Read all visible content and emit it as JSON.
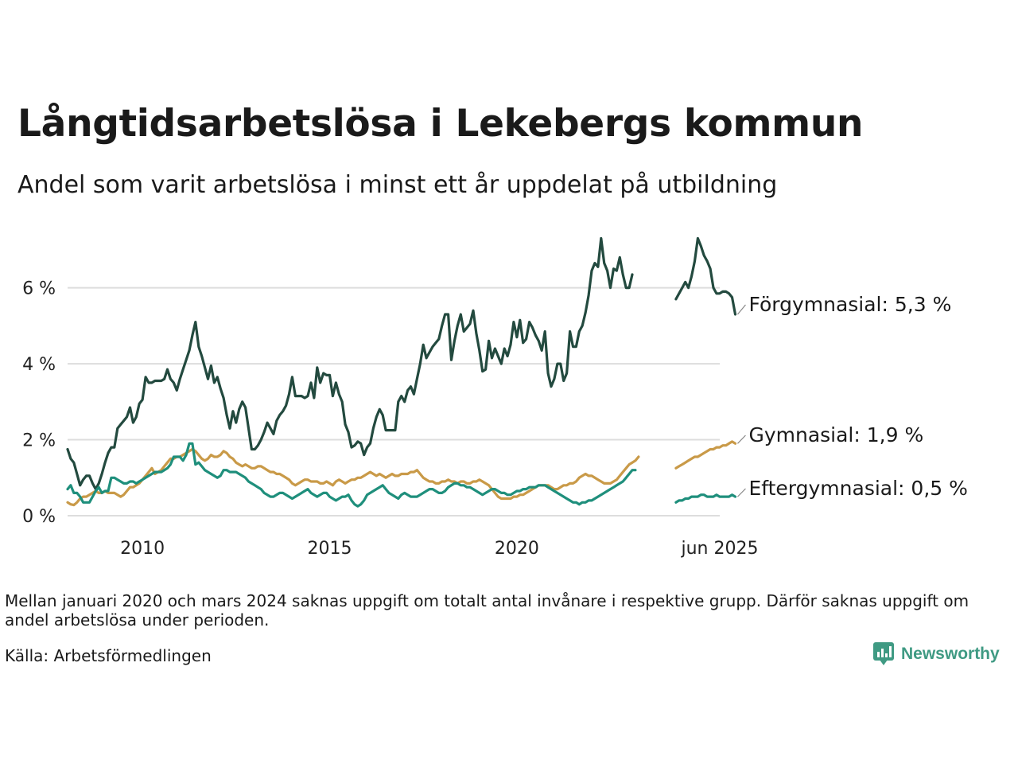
{
  "header": {
    "title": "Långtidsarbetslösa i Lekebergs kommun",
    "subtitle": "Andel som varit arbetslösa i minst ett år uppdelat på utbildning"
  },
  "footer": {
    "note": "Mellan januari 2020 och mars 2024 saknas uppgift om totalt antal invånare i respektive grupp. Därför saknas uppgift om andel arbetslösa under perioden.",
    "source": "Källa: Arbetsförmedlingen",
    "brand": "Newsworthy",
    "brand_icon": "newsworthy-logo-icon"
  },
  "chart_data": {
    "type": "line",
    "title": "Långtidsarbetslösa i Lekebergs kommun",
    "subtitle": "Andel som varit arbetslösa i minst ett år uppdelat på utbildning",
    "xlabel": "",
    "ylabel": "",
    "ylim": [
      0,
      7.5
    ],
    "y_ticks": [
      0,
      2,
      4,
      6
    ],
    "y_tick_labels": [
      "0 %",
      "2 %",
      "4 %",
      "6 %"
    ],
    "x_ticks": [
      2010,
      2015,
      2020,
      2025.42
    ],
    "x_tick_labels": [
      "2010",
      "2015",
      "2020",
      "jun 2025"
    ],
    "grid": true,
    "legend": "end-labels",
    "series": [
      {
        "name": "Förgymnasial",
        "end_label": "Förgymnasial: 5,3 %",
        "color": "#234a3f",
        "segments": [
          {
            "start": "2008-01",
            "values": [
              1.75,
              1.5,
              1.4,
              1.1,
              0.8,
              0.95,
              1.05,
              1.05,
              0.85,
              0.7,
              0.85,
              1.1,
              1.4,
              1.65,
              1.8,
              1.8,
              2.3,
              2.4,
              2.5,
              2.6,
              2.85,
              2.45,
              2.6,
              2.95,
              3.05,
              3.65,
              3.5,
              3.5,
              3.55,
              3.55,
              3.55,
              3.6,
              3.85,
              3.6,
              3.5,
              3.3,
              3.6,
              3.85,
              4.1,
              4.35,
              4.75,
              5.1,
              4.45,
              4.2,
              3.9,
              3.6,
              3.95,
              3.5,
              3.65,
              3.35,
              3.1,
              2.65,
              2.3,
              2.75,
              2.45,
              2.8,
              3.0,
              2.85,
              2.3,
              1.75,
              1.75,
              1.85,
              2.0,
              2.2,
              2.45,
              2.3,
              2.15,
              2.5,
              2.65,
              2.75,
              2.9,
              3.2,
              3.65,
              3.15,
              3.15,
              3.15,
              3.1,
              3.15,
              3.5,
              3.1,
              3.9,
              3.5,
              3.75,
              3.7,
              3.7,
              3.15,
              3.5,
              3.2,
              3.0,
              2.4,
              2.2,
              1.8,
              1.85,
              1.95,
              1.9,
              1.6,
              1.8,
              1.9,
              2.3,
              2.6,
              2.8,
              2.65,
              2.25,
              2.25,
              2.25,
              2.25,
              3.0,
              3.15,
              3.0,
              3.3,
              3.4,
              3.2,
              3.6,
              4.0,
              4.5,
              4.15,
              4.3,
              4.45,
              4.55,
              4.65,
              5.0,
              5.3,
              5.3,
              4.1,
              4.6,
              5.0,
              5.3,
              4.85,
              4.95,
              5.05,
              5.4,
              4.8,
              4.35,
              3.8,
              3.85,
              4.6,
              4.15,
              4.4,
              4.2,
              4.0,
              4.4,
              4.2,
              4.5,
              5.1,
              4.7,
              5.15,
              4.55,
              4.65,
              5.1,
              4.95,
              4.75,
              4.6,
              4.35,
              4.85,
              3.75,
              3.4,
              3.6,
              4.0,
              4.0,
              3.55,
              3.75,
              4.85,
              4.45,
              4.45,
              4.85,
              5.0,
              5.35,
              5.8,
              6.45,
              6.65,
              6.55,
              7.3,
              6.65,
              6.45,
              6.0,
              6.5,
              6.45,
              6.8,
              6.35,
              6.0,
              6.0,
              6.35
            ]
          },
          {
            "start": "2024-04",
            "values": [
              5.7,
              5.85,
              6.0,
              6.15,
              6.0,
              6.3,
              6.7,
              7.3,
              7.1,
              6.85,
              6.7,
              6.5,
              6.0,
              5.85,
              5.85,
              5.9,
              5.9,
              5.85,
              5.75,
              5.3
            ]
          }
        ]
      },
      {
        "name": "Gymnasial",
        "end_label": "Gymnasial: 1,9 %",
        "color": "#c99a48",
        "segments": [
          {
            "start": "2008-01",
            "values": [
              0.35,
              0.3,
              0.28,
              0.35,
              0.45,
              0.5,
              0.5,
              0.55,
              0.6,
              0.65,
              0.6,
              0.6,
              0.65,
              0.6,
              0.6,
              0.6,
              0.55,
              0.5,
              0.55,
              0.65,
              0.75,
              0.75,
              0.8,
              0.85,
              0.95,
              1.05,
              1.15,
              1.25,
              1.1,
              1.15,
              1.2,
              1.3,
              1.4,
              1.5,
              1.5,
              1.55,
              1.55,
              1.6,
              1.65,
              1.7,
              1.75,
              1.7,
              1.6,
              1.5,
              1.45,
              1.5,
              1.6,
              1.55,
              1.55,
              1.6,
              1.7,
              1.65,
              1.55,
              1.5,
              1.4,
              1.35,
              1.3,
              1.35,
              1.3,
              1.25,
              1.25,
              1.3,
              1.3,
              1.25,
              1.2,
              1.15,
              1.15,
              1.1,
              1.1,
              1.05,
              1.0,
              0.95,
              0.85,
              0.8,
              0.85,
              0.9,
              0.95,
              0.95,
              0.9,
              0.9,
              0.9,
              0.85,
              0.85,
              0.9,
              0.85,
              0.8,
              0.9,
              0.95,
              0.9,
              0.85,
              0.9,
              0.95,
              0.95,
              1.0,
              1.0,
              1.05,
              1.1,
              1.15,
              1.1,
              1.05,
              1.1,
              1.05,
              1.0,
              1.05,
              1.1,
              1.05,
              1.05,
              1.1,
              1.1,
              1.1,
              1.15,
              1.15,
              1.2,
              1.1,
              1.0,
              0.95,
              0.9,
              0.9,
              0.85,
              0.85,
              0.9,
              0.9,
              0.95,
              0.9,
              0.9,
              0.85,
              0.9,
              0.9,
              0.85,
              0.85,
              0.9,
              0.9,
              0.95,
              0.9,
              0.85,
              0.8,
              0.7,
              0.6,
              0.5,
              0.45,
              0.45,
              0.45,
              0.45,
              0.5,
              0.5,
              0.55,
              0.55,
              0.6,
              0.65,
              0.7,
              0.75,
              0.8,
              0.8,
              0.8,
              0.8,
              0.75,
              0.7,
              0.7,
              0.75,
              0.8,
              0.8,
              0.85,
              0.85,
              0.9,
              1.0,
              1.05,
              1.1,
              1.05,
              1.05,
              1.0,
              0.95,
              0.9,
              0.85,
              0.85,
              0.85,
              0.9,
              0.95,
              1.05,
              1.15,
              1.25,
              1.35,
              1.4,
              1.45,
              1.55
            ]
          },
          {
            "start": "2024-04",
            "values": [
              1.25,
              1.3,
              1.35,
              1.4,
              1.45,
              1.5,
              1.55,
              1.55,
              1.6,
              1.65,
              1.7,
              1.75,
              1.75,
              1.8,
              1.8,
              1.85,
              1.85,
              1.9,
              1.95,
              1.9
            ]
          }
        ]
      },
      {
        "name": "Eftergymnasial",
        "end_label": "Eftergymnasial: 0,5 %",
        "color": "#1f8f7c",
        "segments": [
          {
            "start": "2008-01",
            "values": [
              0.7,
              0.8,
              0.6,
              0.6,
              0.5,
              0.35,
              0.35,
              0.35,
              0.5,
              0.65,
              0.75,
              0.6,
              0.65,
              0.65,
              1.0,
              1.0,
              0.95,
              0.9,
              0.85,
              0.85,
              0.9,
              0.9,
              0.85,
              0.9,
              0.95,
              1.0,
              1.05,
              1.1,
              1.15,
              1.15,
              1.15,
              1.2,
              1.25,
              1.35,
              1.55,
              1.55,
              1.55,
              1.45,
              1.6,
              1.9,
              1.9,
              1.35,
              1.4,
              1.3,
              1.2,
              1.15,
              1.1,
              1.05,
              1.0,
              1.05,
              1.2,
              1.2,
              1.15,
              1.15,
              1.15,
              1.1,
              1.05,
              1.0,
              0.9,
              0.85,
              0.8,
              0.75,
              0.7,
              0.6,
              0.55,
              0.5,
              0.5,
              0.55,
              0.6,
              0.6,
              0.55,
              0.5,
              0.45,
              0.5,
              0.55,
              0.6,
              0.65,
              0.7,
              0.6,
              0.55,
              0.5,
              0.55,
              0.6,
              0.6,
              0.5,
              0.45,
              0.4,
              0.45,
              0.5,
              0.5,
              0.55,
              0.4,
              0.3,
              0.25,
              0.3,
              0.4,
              0.55,
              0.6,
              0.65,
              0.7,
              0.75,
              0.8,
              0.7,
              0.6,
              0.55,
              0.5,
              0.45,
              0.55,
              0.6,
              0.55,
              0.5,
              0.5,
              0.5,
              0.55,
              0.6,
              0.65,
              0.7,
              0.7,
              0.65,
              0.6,
              0.6,
              0.65,
              0.75,
              0.8,
              0.85,
              0.85,
              0.8,
              0.8,
              0.75,
              0.75,
              0.7,
              0.65,
              0.6,
              0.55,
              0.6,
              0.65,
              0.7,
              0.7,
              0.65,
              0.6,
              0.6,
              0.55,
              0.55,
              0.6,
              0.65,
              0.65,
              0.7,
              0.7,
              0.75,
              0.75,
              0.75,
              0.8,
              0.8,
              0.8,
              0.75,
              0.7,
              0.65,
              0.6,
              0.55,
              0.5,
              0.45,
              0.4,
              0.35,
              0.35,
              0.3,
              0.35,
              0.35,
              0.4,
              0.4,
              0.45,
              0.5,
              0.55,
              0.6,
              0.65,
              0.7,
              0.75,
              0.8,
              0.85,
              0.9,
              1.0,
              1.1,
              1.2,
              1.2
            ]
          },
          {
            "start": "2024-04",
            "values": [
              0.35,
              0.4,
              0.4,
              0.45,
              0.45,
              0.5,
              0.5,
              0.5,
              0.55,
              0.55,
              0.5,
              0.5,
              0.5,
              0.55,
              0.5,
              0.5,
              0.5,
              0.5,
              0.55,
              0.5
            ]
          }
        ]
      }
    ]
  }
}
